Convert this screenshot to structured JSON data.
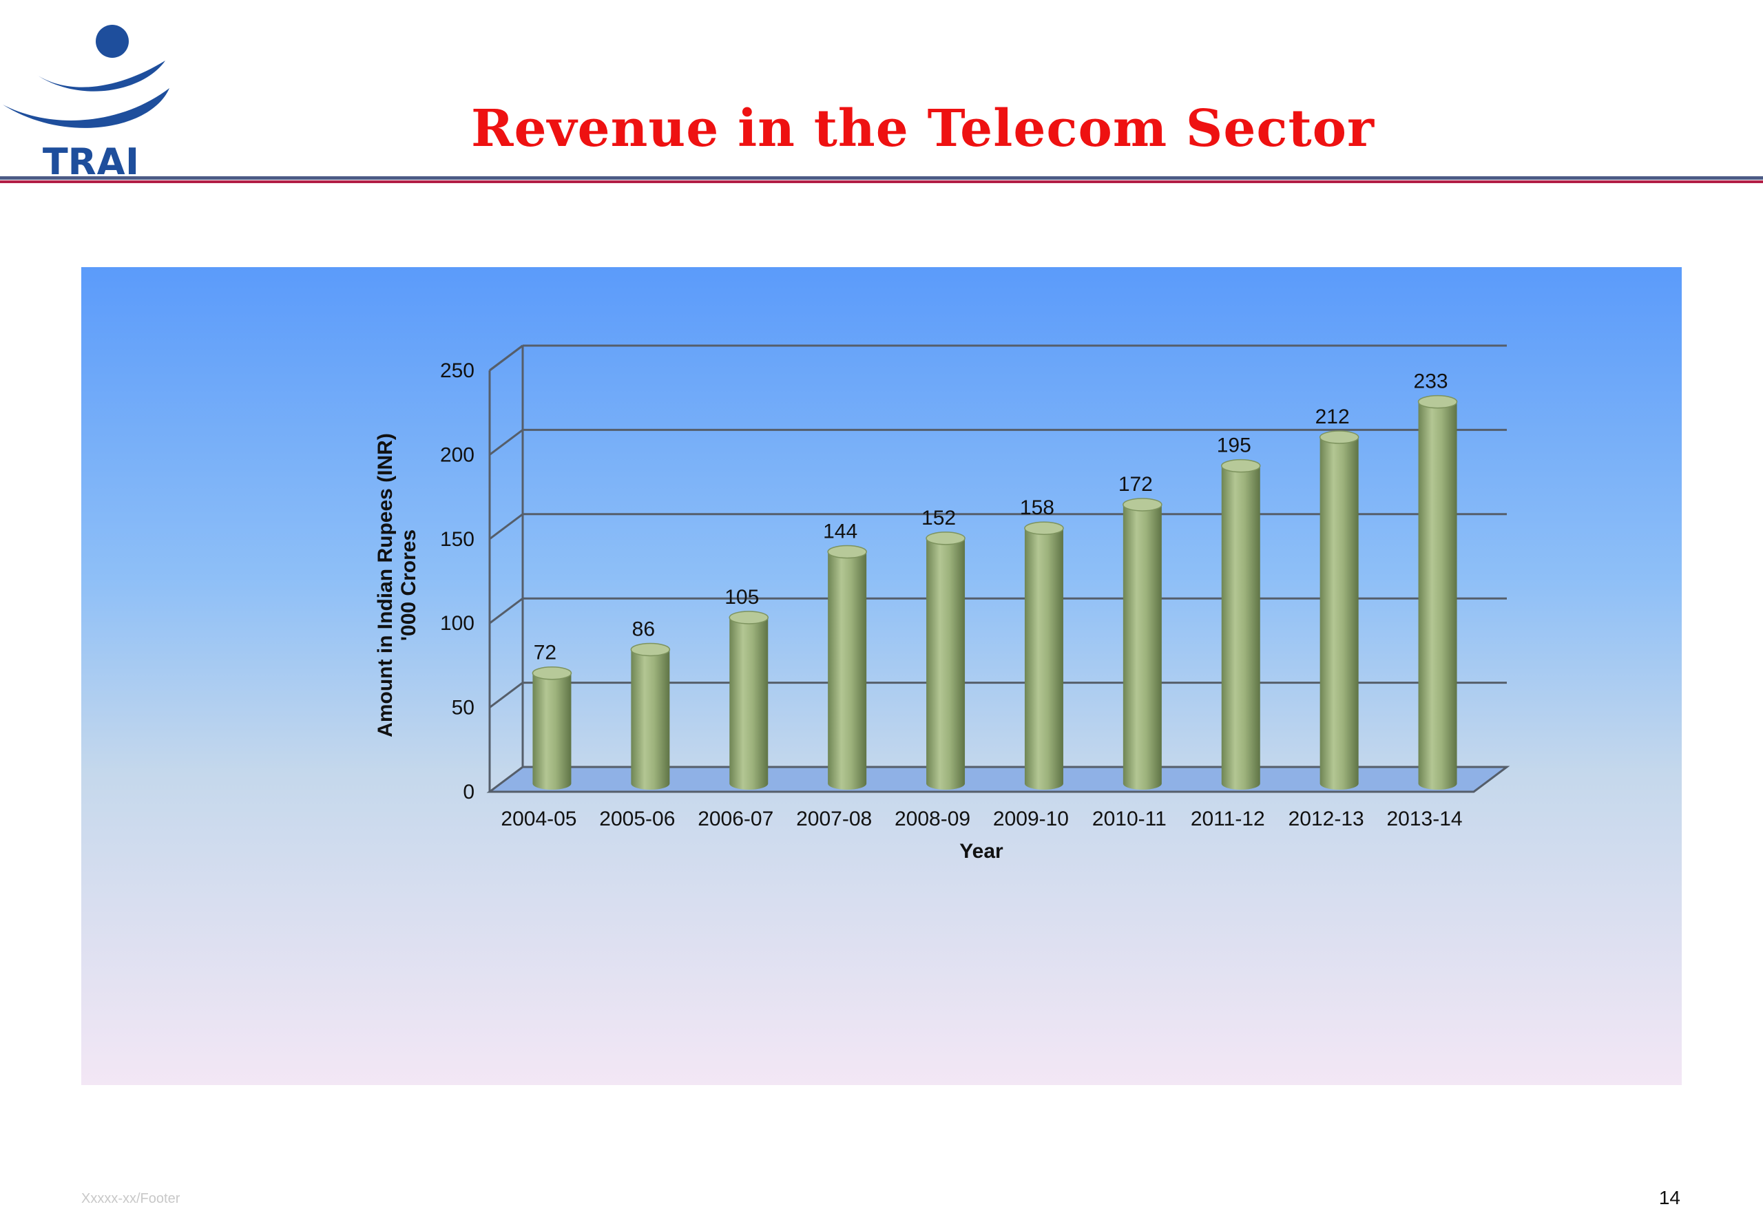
{
  "logo": {
    "text": "TRAI"
  },
  "slide": {
    "title": "Revenue in the Telecom Sector",
    "footer": "Xxxxx-xx/Footer",
    "page_number": "14"
  },
  "colors": {
    "title": "#ee1111",
    "logo_blue": "#1e4e9c",
    "bar_fill": "#9fb47e",
    "bar_dark": "#6f8554",
    "bar_top": "#b7c999",
    "grid": "#555e6a"
  },
  "chart_data": {
    "type": "bar",
    "style": "3d-cylinder",
    "categories": [
      "2004-05",
      "2005-06",
      "2006-07",
      "2007-08",
      "2008-09",
      "2009-10",
      "2010-11",
      "2011-12",
      "2012-13",
      "2013-14"
    ],
    "values": [
      72,
      86,
      105,
      144,
      152,
      158,
      172,
      195,
      212,
      233
    ],
    "data_labels": [
      "72",
      "86",
      "105",
      "144",
      "152",
      "158",
      "172",
      "195",
      "212",
      "233"
    ],
    "xlabel": "Year",
    "ylabel": "Amount in Indian Rupees (INR)",
    "ylabel_line2": "'000 Crores",
    "ylim": [
      0,
      250
    ],
    "yticks": [
      "0",
      "50",
      "100",
      "150",
      "200",
      "250"
    ],
    "grid": true,
    "legend": "none"
  }
}
